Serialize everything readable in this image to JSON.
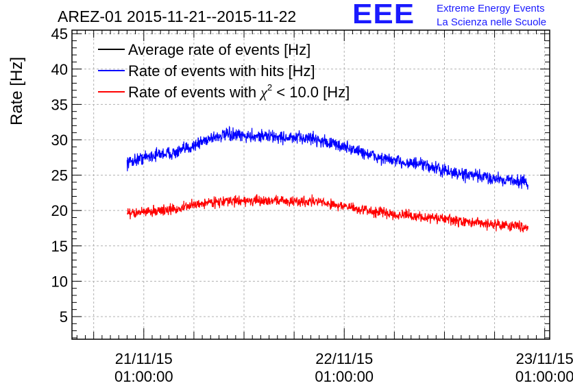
{
  "header": {
    "title": "AREZ-01 2015-11-21--2015-11-22",
    "logo": "EEE",
    "logo_line1": "Extreme Energy Events",
    "logo_line2": "La Scienza nelle Scuole"
  },
  "colors": {
    "average": "#000000",
    "hits": "#0000ff",
    "chi2": "#ff0000",
    "grid": "#b0b0b0",
    "logo": "#1a1aff"
  },
  "chart_data": {
    "type": "line",
    "title": "AREZ-01 2015-11-21--2015-11-22",
    "ylabel": "Rate [Hz]",
    "xlabel": "",
    "ylim": [
      1.8,
      45.5
    ],
    "x_unit": "hours since 21/11/15 01:00:00",
    "xlim": [
      -8.6,
      48.6
    ],
    "y_ticks": [
      5,
      10,
      15,
      20,
      25,
      30,
      35,
      40,
      45
    ],
    "x_ticks": [
      {
        "x": 0,
        "date": "21/11/15",
        "time": "01:00:00"
      },
      {
        "x": 24,
        "date": "22/11/15",
        "time": "01:00:00"
      },
      {
        "x": 48,
        "date": "23/11/15",
        "time": "01:00:00"
      }
    ],
    "grid": true,
    "legend_position": "top-left",
    "series": [
      {
        "name": "Average rate of events [Hz]",
        "color": "#000000",
        "x": [],
        "values": []
      },
      {
        "name": "Rate of events with hits [Hz]",
        "color": "#0000ff",
        "x": [
          -2,
          0,
          2,
          4,
          6,
          8,
          10,
          12,
          14,
          16,
          18,
          20,
          22,
          24,
          26,
          28,
          30,
          32,
          34,
          36,
          38,
          46
        ],
        "values": [
          26.8,
          27.5,
          28.0,
          28.2,
          29.2,
          30.3,
          30.7,
          30.5,
          30.6,
          30.4,
          30.2,
          30.3,
          29.6,
          29.0,
          28.3,
          27.5,
          27.0,
          26.7,
          26.3,
          25.6,
          25.1,
          24.0
        ],
        "noise": 1.0
      },
      {
        "name": "Rate of events with χ² < 10.0 [Hz]",
        "legend_main": "Rate of events with ",
        "legend_chi": "χ",
        "legend_sup": "2",
        "legend_rest": " < 10.0 [Hz]",
        "color": "#ff0000",
        "x": [
          -2,
          0,
          2,
          4,
          6,
          8,
          10,
          12,
          14,
          16,
          18,
          20,
          22,
          24,
          26,
          28,
          30,
          32,
          34,
          36,
          38,
          46
        ],
        "values": [
          19.5,
          19.8,
          20.0,
          20.2,
          20.8,
          21.2,
          21.3,
          21.4,
          21.3,
          21.5,
          21.2,
          21.4,
          21.0,
          20.6,
          20.1,
          19.8,
          19.5,
          19.2,
          19.0,
          18.8,
          18.4,
          17.7
        ],
        "noise": 0.8
      }
    ]
  }
}
